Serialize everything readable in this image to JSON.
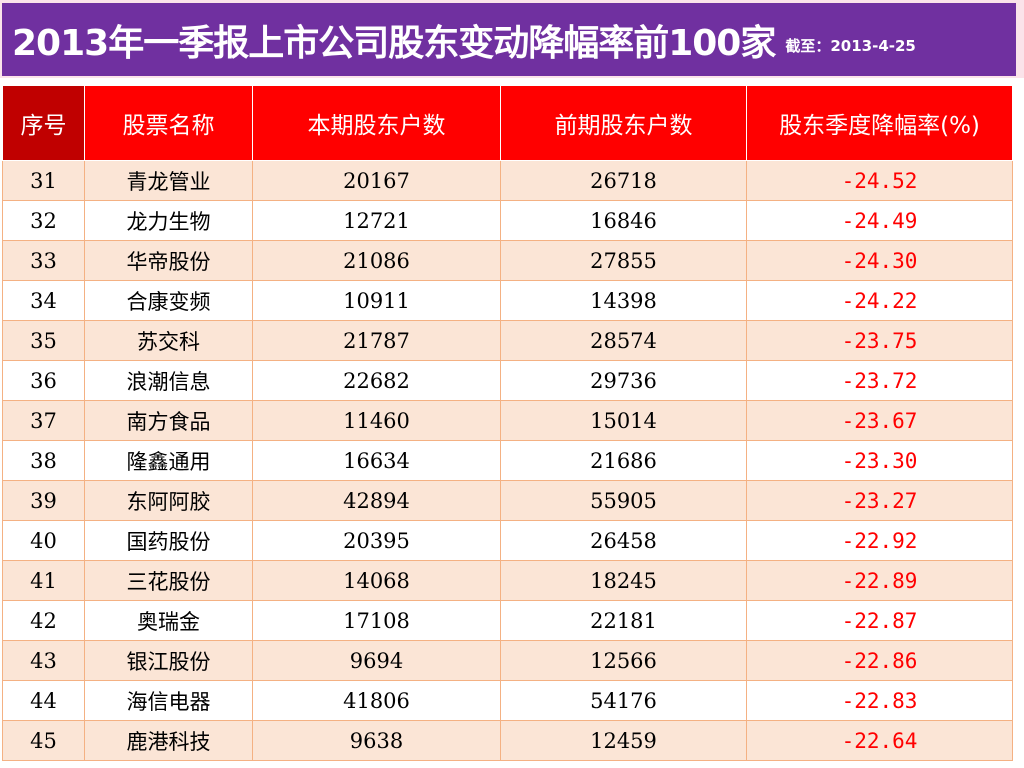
{
  "title": {
    "main": "2013年一季报上市公司股东变动降幅率前100家",
    "date_note": "截至：2013-4-25"
  },
  "colors": {
    "title_bg": "#7030a0",
    "header_bg": "#ff0000",
    "header_first_bg": "#c00000",
    "row_odd_bg": "#fbe5d6",
    "rate_text": "#ff0000"
  },
  "table": {
    "headers": [
      "序号",
      "股票名称",
      "本期股东户数",
      "前期股东户数",
      "股东季度降幅率(%)"
    ],
    "rows": [
      {
        "no": "31",
        "name": "青龙管业",
        "current": "20167",
        "previous": "26718",
        "rate": "-24.52"
      },
      {
        "no": "32",
        "name": "龙力生物",
        "current": "12721",
        "previous": "16846",
        "rate": "-24.49"
      },
      {
        "no": "33",
        "name": "华帝股份",
        "current": "21086",
        "previous": "27855",
        "rate": "-24.30"
      },
      {
        "no": "34",
        "name": "合康变频",
        "current": "10911",
        "previous": "14398",
        "rate": "-24.22"
      },
      {
        "no": "35",
        "name": "苏交科",
        "current": "21787",
        "previous": "28574",
        "rate": "-23.75"
      },
      {
        "no": "36",
        "name": "浪潮信息",
        "current": "22682",
        "previous": "29736",
        "rate": "-23.72"
      },
      {
        "no": "37",
        "name": "南方食品",
        "current": "11460",
        "previous": "15014",
        "rate": "-23.67"
      },
      {
        "no": "38",
        "name": "隆鑫通用",
        "current": "16634",
        "previous": "21686",
        "rate": "-23.30"
      },
      {
        "no": "39",
        "name": "东阿阿胶",
        "current": "42894",
        "previous": "55905",
        "rate": "-23.27"
      },
      {
        "no": "40",
        "name": "国药股份",
        "current": "20395",
        "previous": "26458",
        "rate": "-22.92"
      },
      {
        "no": "41",
        "name": "三花股份",
        "current": "14068",
        "previous": "18245",
        "rate": "-22.89"
      },
      {
        "no": "42",
        "name": "奥瑞金",
        "current": "17108",
        "previous": "22181",
        "rate": "-22.87"
      },
      {
        "no": "43",
        "name": "银江股份",
        "current": "9694",
        "previous": "12566",
        "rate": "-22.86"
      },
      {
        "no": "44",
        "name": "海信电器",
        "current": "41806",
        "previous": "54176",
        "rate": "-22.83"
      },
      {
        "no": "45",
        "name": "鹿港科技",
        "current": "9638",
        "previous": "12459",
        "rate": "-22.64"
      }
    ]
  }
}
